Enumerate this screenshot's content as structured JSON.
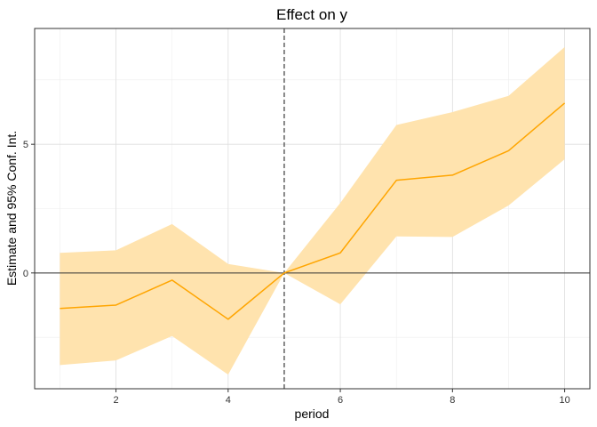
{
  "chart_data": {
    "type": "line",
    "title": "Effect on y",
    "xlabel": "period",
    "ylabel": "Estimate and 95% Conf. Int.",
    "x": [
      1,
      2,
      3,
      4,
      5,
      6,
      7,
      8,
      9,
      10
    ],
    "series": [
      {
        "estimate": [
          -1.38,
          -1.25,
          -0.28,
          -1.8,
          0.0,
          0.78,
          3.6,
          3.8,
          4.75,
          6.6
        ],
        "ci_lower": [
          -3.58,
          -3.4,
          -2.45,
          -3.95,
          0.0,
          -1.22,
          1.42,
          1.4,
          2.62,
          4.42
        ],
        "ci_upper": [
          0.78,
          0.88,
          1.9,
          0.35,
          0.0,
          2.72,
          5.75,
          6.25,
          6.88,
          8.78
        ]
      }
    ],
    "xticks": [
      2,
      4,
      6,
      8,
      10
    ],
    "yticks": [
      0,
      5
    ],
    "xlim": [
      0.55,
      10.45
    ],
    "ylim": [
      -4.5,
      9.5
    ],
    "reference_hline": 0,
    "reference_vline": 5,
    "grid": true,
    "colors": {
      "line": "#FFA500",
      "band": "#FFE3AE",
      "refline": "#333333",
      "vline": "#555555",
      "grid": "#dedede"
    }
  }
}
